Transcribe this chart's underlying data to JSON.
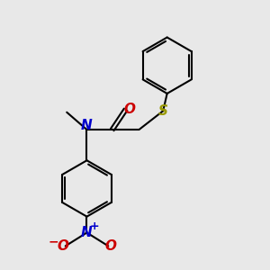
{
  "bg_color": "#e8e8e8",
  "bond_color": "#000000",
  "S_color": "#999900",
  "N_color": "#0000cc",
  "O_color": "#cc0000",
  "line_width": 1.5,
  "fig_size": [
    3.0,
    3.0
  ],
  "dpi": 100,
  "xlim": [
    0,
    10
  ],
  "ylim": [
    0,
    10
  ]
}
